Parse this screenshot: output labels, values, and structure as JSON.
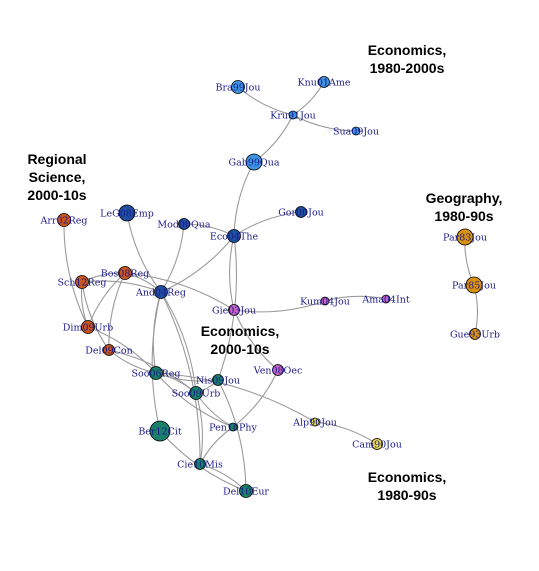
{
  "colors": {
    "economics_1980_2000s": "#3d93e0",
    "regional_science_2000_10s": "#c9541c",
    "geography_1980_90s": "#d9920f",
    "economics_2000_10s": "#1a7f6a",
    "economics_2000_10s_core": "#1f4fa0",
    "economics_1980_90s": "#e2d64a",
    "bridge": "#c763c2"
  },
  "clusters": [
    {
      "id": "c1",
      "lines": [
        "Economics,",
        "1980-2000s"
      ]
    },
    {
      "id": "c2",
      "lines": [
        "Regional",
        "Science,",
        "2000-10s"
      ]
    },
    {
      "id": "c3",
      "lines": [
        "Geography,",
        "1980-90s"
      ]
    },
    {
      "id": "c4",
      "lines": [
        "Economics,",
        "2000-10s"
      ]
    },
    {
      "id": "c5",
      "lines": [
        "Economics,",
        "1980-90s"
      ]
    }
  ],
  "nodes": [
    {
      "id": "bra",
      "label": "Bra99Jou",
      "color": "economics_1980_2000s",
      "size": "m"
    },
    {
      "id": "knu1",
      "label": "Knu01Ame",
      "color": "economics_1980_2000s",
      "size": "s"
    },
    {
      "id": "kru",
      "label": "Kru91Jou",
      "color": "economics_1980_2000s",
      "size": "xs"
    },
    {
      "id": "sua",
      "label": "Sua09Jou",
      "color": "economics_1980_2000s",
      "size": "xs"
    },
    {
      "id": "gab",
      "label": "Gab99Qua",
      "color": "economics_1980_2000s",
      "size": "l"
    },
    {
      "id": "gor",
      "label": "Gor00Jou",
      "color": "economics_2000_10s_core",
      "size": "s"
    },
    {
      "id": "leg",
      "label": "LeG08Emp",
      "color": "economics_2000_10s_core",
      "size": "l"
    },
    {
      "id": "mod",
      "label": "Mod00Qua",
      "color": "economics_2000_10s_core",
      "size": "s"
    },
    {
      "id": "eco",
      "label": "Eco04The",
      "color": "economics_2000_10s_core",
      "size": "m"
    },
    {
      "id": "and",
      "label": "And04Reg",
      "color": "economics_2000_10s_core",
      "size": "m"
    },
    {
      "id": "arr",
      "label": "Arr02Reg",
      "color": "regional_science_2000_10s",
      "size": "m"
    },
    {
      "id": "bos",
      "label": "Bos08Reg",
      "color": "regional_science_2000_10s",
      "size": "m"
    },
    {
      "id": "sch",
      "label": "Sch12Reg",
      "color": "regional_science_2000_10s",
      "size": "m"
    },
    {
      "id": "dim",
      "label": "Dim09Urb",
      "color": "regional_science_2000_10s",
      "size": "m"
    },
    {
      "id": "del",
      "label": "Del09Con",
      "color": "regional_science_2000_10s",
      "size": "s"
    },
    {
      "id": "gie",
      "label": "Gie03Jou",
      "color": "bridge",
      "size": "s"
    },
    {
      "id": "kum",
      "label": "Kum04Jou",
      "color": "bridge",
      "size": "xs"
    },
    {
      "id": "ama",
      "label": "Ama04Int",
      "color": "bridge",
      "size": "xs"
    },
    {
      "id": "ven",
      "label": "Ven08Oec",
      "color": "bridge",
      "size": "s"
    },
    {
      "id": "par83",
      "label": "Par83Jou",
      "color": "geography_1980_90s",
      "size": "l"
    },
    {
      "id": "par85",
      "label": "Par85Jou",
      "color": "geography_1980_90s",
      "size": "l"
    },
    {
      "id": "gue",
      "label": "Gue93Urb",
      "color": "geography_1980_90s",
      "size": "s"
    },
    {
      "id": "soo1",
      "label": "Soo06Reg",
      "color": "economics_2000_10s",
      "size": "m"
    },
    {
      "id": "nis",
      "label": "Nis09Jou",
      "color": "economics_2000_10s",
      "size": "s"
    },
    {
      "id": "soo2",
      "label": "Soo09Urb",
      "color": "economics_2000_10s",
      "size": "m"
    },
    {
      "id": "ber",
      "label": "Ber12Cit",
      "color": "economics_2000_10s",
      "size": "xl"
    },
    {
      "id": "pen",
      "label": "Pen10Phy",
      "color": "economics_2000_10s",
      "size": "xs"
    },
    {
      "id": "cie",
      "label": "Cie10Mis",
      "color": "economics_2000_10s",
      "size": "s"
    },
    {
      "id": "del2",
      "label": "Del10Eur",
      "color": "economics_2000_10s",
      "size": "m"
    },
    {
      "id": "alp",
      "label": "Alp90Jou",
      "color": "economics_1980_90s",
      "size": "xs"
    },
    {
      "id": "cam",
      "label": "Cam90Jou",
      "color": "economics_1980_90s",
      "size": "s"
    }
  ],
  "edges": [
    [
      "bra",
      "kru"
    ],
    [
      "knu1",
      "kru"
    ],
    [
      "kru",
      "sua"
    ],
    [
      "kru",
      "gab"
    ],
    [
      "gab",
      "eco"
    ],
    [
      "eco",
      "gor"
    ],
    [
      "eco",
      "mod"
    ],
    [
      "eco",
      "and"
    ],
    [
      "eco",
      "gie"
    ],
    [
      "eco",
      "nis"
    ],
    [
      "leg",
      "and"
    ],
    [
      "mod",
      "and"
    ],
    [
      "arr",
      "dim"
    ],
    [
      "sch",
      "bos"
    ],
    [
      "sch",
      "dim"
    ],
    [
      "sch",
      "and"
    ],
    [
      "sch",
      "del"
    ],
    [
      "bos",
      "and"
    ],
    [
      "bos",
      "dim"
    ],
    [
      "bos",
      "gie"
    ],
    [
      "bos",
      "del"
    ],
    [
      "dim",
      "soo1"
    ],
    [
      "del",
      "soo1"
    ],
    [
      "del",
      "soo2"
    ],
    [
      "and",
      "soo1"
    ],
    [
      "and",
      "soo2"
    ],
    [
      "and",
      "ber"
    ],
    [
      "and",
      "cie"
    ],
    [
      "gie",
      "kum"
    ],
    [
      "kum",
      "ama"
    ],
    [
      "gie",
      "ven"
    ],
    [
      "ven",
      "pen"
    ],
    [
      "soo1",
      "nis"
    ],
    [
      "soo1",
      "soo2"
    ],
    [
      "soo1",
      "pen"
    ],
    [
      "soo1",
      "alp"
    ],
    [
      "soo2",
      "nis"
    ],
    [
      "soo2",
      "cie"
    ],
    [
      "soo2",
      "pen"
    ],
    [
      "nis",
      "del2"
    ],
    [
      "pen",
      "cie"
    ],
    [
      "cie",
      "del2"
    ],
    [
      "ber",
      "del2"
    ],
    [
      "alp",
      "cam"
    ],
    [
      "par83",
      "par85"
    ],
    [
      "par85",
      "gue"
    ]
  ]
}
